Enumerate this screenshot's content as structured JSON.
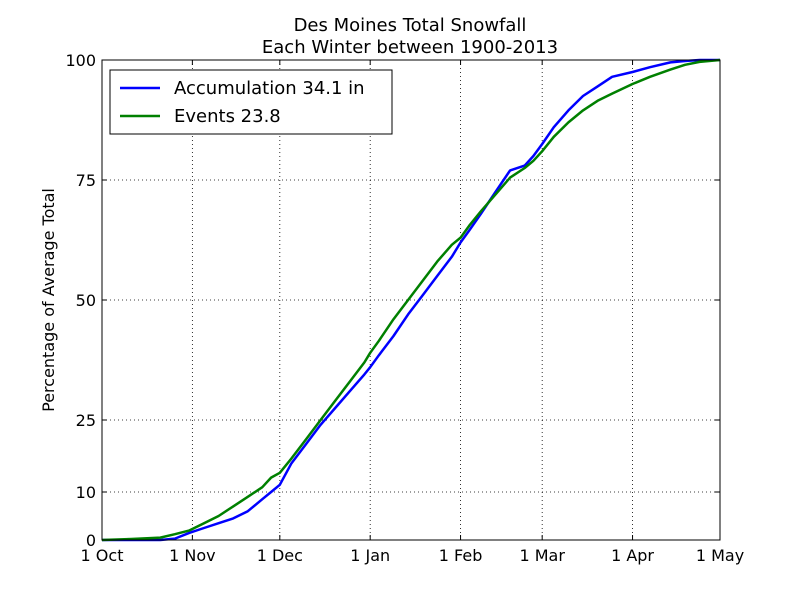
{
  "chart_data": {
    "type": "line",
    "title": "Des Moines Total Snowfall",
    "subtitle": "Each Winter between 1900-2013",
    "ylabel": "Percentage of Average Total",
    "xlabel": "",
    "xlim": [
      0,
      212
    ],
    "ylim": [
      0,
      100
    ],
    "grid": true,
    "legend_position": "top-left",
    "x_ticks": [
      {
        "x": 0,
        "label": "1 Oct"
      },
      {
        "x": 31,
        "label": "1 Nov"
      },
      {
        "x": 61,
        "label": "1 Dec"
      },
      {
        "x": 92,
        "label": "1 Jan"
      },
      {
        "x": 123,
        "label": "1 Feb"
      },
      {
        "x": 151,
        "label": "1 Mar"
      },
      {
        "x": 182,
        "label": "1 Apr"
      },
      {
        "x": 212,
        "label": "1 May"
      }
    ],
    "y_ticks": [
      {
        "y": 0,
        "label": "0"
      },
      {
        "y": 10,
        "label": "10"
      },
      {
        "y": 25,
        "label": "25"
      },
      {
        "y": 50,
        "label": "50"
      },
      {
        "y": 75,
        "label": "75"
      },
      {
        "y": 100,
        "label": "100"
      }
    ],
    "series": [
      {
        "name": "Accumulation 34.1 in",
        "color": "#0000ff",
        "x": [
          0,
          10,
          20,
          25,
          30,
          35,
          40,
          45,
          50,
          55,
          58,
          61,
          65,
          70,
          75,
          80,
          85,
          90,
          92,
          95,
          100,
          105,
          110,
          115,
          120,
          123,
          126,
          130,
          135,
          140,
          145,
          148,
          151,
          155,
          160,
          165,
          170,
          175,
          182,
          188,
          195,
          200,
          205,
          212
        ],
        "y": [
          0,
          0,
          0,
          0.3,
          1.5,
          2.5,
          3.5,
          4.5,
          6,
          8.5,
          10,
          11.5,
          16,
          20,
          24,
          27.5,
          31,
          34.5,
          36,
          38.5,
          42.5,
          47,
          51,
          55,
          59,
          62,
          64.5,
          68,
          72.5,
          77,
          78,
          80,
          82.5,
          86,
          89.5,
          92.5,
          94.5,
          96.5,
          97.5,
          98.5,
          99.5,
          99.8,
          100,
          100
        ]
      },
      {
        "name": "Events 23.8",
        "color": "#008000",
        "x": [
          0,
          10,
          20,
          25,
          30,
          35,
          40,
          45,
          50,
          55,
          58,
          61,
          65,
          70,
          75,
          80,
          85,
          90,
          92,
          95,
          100,
          105,
          110,
          115,
          120,
          123,
          126,
          130,
          135,
          140,
          145,
          148,
          151,
          155,
          160,
          165,
          170,
          175,
          182,
          188,
          195,
          200,
          205,
          212
        ],
        "y": [
          0,
          0.2,
          0.5,
          1.2,
          2,
          3.5,
          5,
          7,
          9,
          11,
          13,
          14,
          17,
          21,
          25,
          29,
          33,
          37,
          39,
          41.5,
          46,
          50,
          54,
          58,
          61.5,
          63,
          65.5,
          68.5,
          72,
          75.5,
          77.5,
          79,
          81,
          84,
          87,
          89.5,
          91.5,
          93,
          95,
          96.5,
          98,
          99,
          99.6,
          100
        ]
      }
    ]
  }
}
